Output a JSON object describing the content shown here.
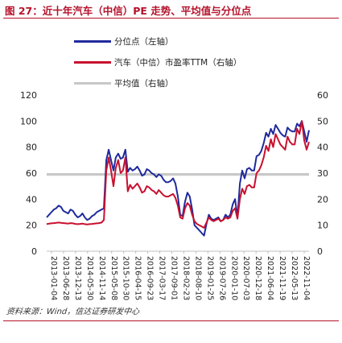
{
  "title": "图 27：近十年汽车（中信）PE 走势、平均值与分位点",
  "source": "资料来源：Wind，信达证券研发中心",
  "colors": {
    "percentile": "#1f2a9c",
    "pe": "#c8102e",
    "avg": "#c8c8c8",
    "axis": "#bfbfbf",
    "accent": "#b5122b"
  },
  "chart_data": {
    "type": "line",
    "x_ticks": [
      "2013-01-04",
      "2013-06-28",
      "2013-12-13",
      "2014-05-30",
      "2014-11-14",
      "2015-05-08",
      "2015-10-30",
      "2016-04-15",
      "2016-09-23",
      "2017-03-17",
      "2017-09-01",
      "2018-02-23",
      "2018-08-10",
      "2019-01-25",
      "2019-07-26",
      "2020-01-10",
      "2020-07-03",
      "2020-12-18",
      "2021-06-04",
      "2021-11-19",
      "2022-05-13",
      "2022-11-04"
    ],
    "y_left": {
      "ticks": [
        0,
        20,
        40,
        60,
        80,
        100,
        120
      ],
      "range": [
        0,
        120
      ]
    },
    "y_right": {
      "ticks": [
        0,
        10,
        20,
        30,
        40,
        50,
        60
      ],
      "range": [
        0,
        60
      ]
    },
    "series": [
      {
        "name": "分位点（左轴）",
        "axis": "left",
        "values": [
          26,
          28,
          30,
          32,
          33,
          35,
          34,
          31,
          30,
          29,
          32,
          31,
          28,
          26,
          27,
          29,
          26,
          24,
          25,
          27,
          28,
          30,
          31,
          32,
          33,
          70,
          78,
          70,
          62,
          72,
          75,
          71,
          72,
          78,
          61,
          64,
          62,
          63,
          65,
          62,
          58,
          59,
          63,
          62,
          60,
          59,
          57,
          59,
          58,
          55,
          53,
          53,
          54,
          56,
          52,
          42,
          28,
          27,
          38,
          45,
          42,
          32,
          20,
          18,
          16,
          14,
          12,
          21,
          28,
          25,
          24,
          25,
          26,
          23,
          24,
          28,
          26,
          28,
          36,
          40,
          26,
          52,
          62,
          56,
          63,
          64,
          62,
          62,
          73,
          74,
          77,
          83,
          91,
          88,
          94,
          90,
          97,
          94,
          91,
          89,
          88,
          95,
          93,
          92,
          92,
          98,
          96,
          100,
          92,
          84,
          93
        ]
      },
      {
        "name": "汽车（中信）市盈率TTM（右轴）",
        "axis": "right",
        "values": [
          10.4,
          10.6,
          10.7,
          10.8,
          10.9,
          11.0,
          10.9,
          10.8,
          10.7,
          10.6,
          10.8,
          10.7,
          10.5,
          10.4,
          10.5,
          10.6,
          10.4,
          10.3,
          10.4,
          10.5,
          10.6,
          10.7,
          10.8,
          11.0,
          12.0,
          31.0,
          36.0,
          31.0,
          25.0,
          32.0,
          35.0,
          30.0,
          31.0,
          36.0,
          23.0,
          25.5,
          24.0,
          25.0,
          26.0,
          24.5,
          22.5,
          23.0,
          25.0,
          24.5,
          23.5,
          23.0,
          22.0,
          23.5,
          22.5,
          21.5,
          21.0,
          21.0,
          21.5,
          22.0,
          20.5,
          17.5,
          13.0,
          12.5,
          16.5,
          18.5,
          17.5,
          14.0,
          11.5,
          10.5,
          10.0,
          9.5,
          9.0,
          11.0,
          13.0,
          12.0,
          11.5,
          12.0,
          12.5,
          11.5,
          12.0,
          13.0,
          12.5,
          13.0,
          15.5,
          16.5,
          12.5,
          20.0,
          24.0,
          22.0,
          25.0,
          25.5,
          24.5,
          24.5,
          30.0,
          31.0,
          33.0,
          36.0,
          40.5,
          38.5,
          43.0,
          40.0,
          45.0,
          43.0,
          41.0,
          40.0,
          39.0,
          44.0,
          42.0,
          41.0,
          41.0,
          47.0,
          45.0,
          50.0,
          42.5,
          39.0,
          42.0
        ]
      },
      {
        "name": "平均值（右轴）",
        "axis": "right",
        "values": [
          29.5,
          29.5
        ]
      }
    ]
  }
}
